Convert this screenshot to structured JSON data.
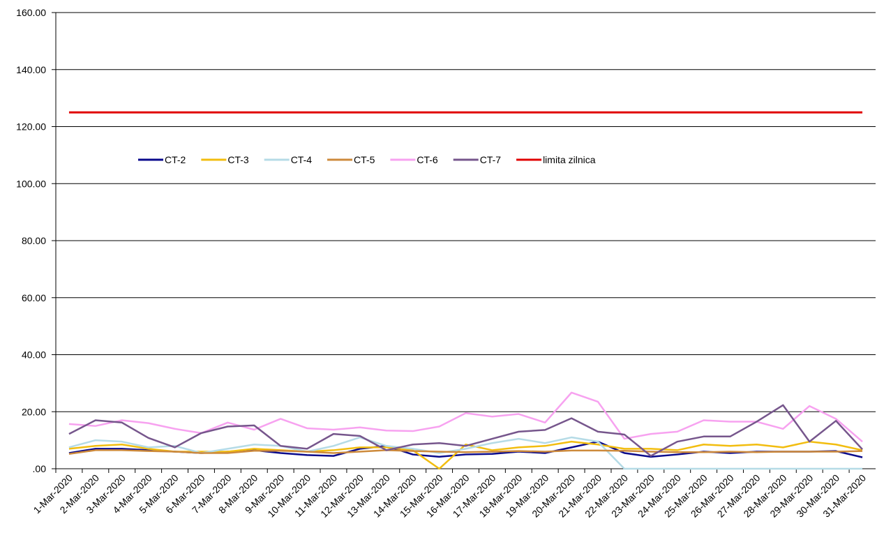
{
  "chart_data": {
    "type": "line",
    "categories": [
      "1-Mar-2020",
      "2-Mar-2020",
      "3-Mar-2020",
      "4-Mar-2020",
      "5-Mar-2020",
      "6-Mar-2020",
      "7-Mar-2020",
      "8-Mar-2020",
      "9-Mar-2020",
      "10-Mar-2020",
      "11-Mar-2020",
      "12-Mar-2020",
      "13-Mar-2020",
      "14-Mar-2020",
      "15-Mar-2020",
      "16-Mar-2020",
      "17-Mar-2020",
      "18-Mar-2020",
      "19-Mar-2020",
      "20-Mar-2020",
      "21-Mar-2020",
      "22-Mar-2020",
      "23-Mar-2020",
      "24-Mar-2020",
      "25-Mar-2020",
      "26-Mar-2020",
      "27-Mar-2020",
      "28-Mar-2020",
      "29-Mar-2020",
      "30-Mar-2020",
      "31-Mar-2020"
    ],
    "series": [
      {
        "name": "CT-2",
        "color": "#0a0a8c",
        "values": [
          5.5,
          7,
          7,
          6.5,
          6,
          5.5,
          6,
          6.5,
          5.5,
          4.8,
          4.5,
          7,
          8,
          5,
          4.2,
          5,
          5.2,
          6,
          5.5,
          7.5,
          9.5,
          5.5,
          4.2,
          5,
          6,
          5.5,
          6,
          6,
          6,
          6.2,
          4
        ]
      },
      {
        "name": "CT-3",
        "color": "#f2bd0f",
        "values": [
          7,
          8,
          8.5,
          7,
          6,
          6,
          6,
          7,
          6.5,
          6,
          6.5,
          7.5,
          7.5,
          6.5,
          0,
          8.5,
          6.5,
          7.5,
          8,
          9.5,
          8.5,
          7,
          7,
          6.5,
          8.5,
          8,
          8.5,
          7.5,
          9.5,
          8.5,
          6.5
        ]
      },
      {
        "name": "CT-4",
        "color": "#b5dbe6",
        "values": [
          7.5,
          10,
          9.5,
          7.5,
          8,
          5.5,
          7,
          8.5,
          8,
          6,
          8,
          11,
          8,
          7,
          5.5,
          7,
          9,
          10.5,
          9,
          11,
          9.5,
          0,
          0,
          0,
          0,
          0,
          0,
          0,
          0,
          0,
          0
        ]
      },
      {
        "name": "CT-5",
        "color": "#cd8a3c",
        "values": [
          5.2,
          6.5,
          6.5,
          6.2,
          6,
          5.5,
          5.5,
          6.3,
          6.3,
          6,
          5.5,
          6,
          6.5,
          6.2,
          6,
          5.8,
          6,
          6.2,
          6,
          6.4,
          6.4,
          6.3,
          6,
          5.8,
          5.8,
          6,
          5.8,
          6,
          6,
          6,
          6.2
        ]
      },
      {
        "name": "CT-6",
        "color": "#f7a2f0",
        "values": [
          15.7,
          15,
          17,
          16,
          14,
          12.5,
          16.2,
          13.7,
          17.5,
          14.2,
          13.7,
          14.5,
          13.4,
          13.2,
          14.8,
          19.5,
          18.3,
          19.2,
          16.2,
          26.7,
          23.5,
          10.5,
          12.2,
          13,
          17,
          16.5,
          16.5,
          14,
          22,
          17.5,
          9.5
        ]
      },
      {
        "name": "CT-7",
        "color": "#76568c",
        "values": [
          12.2,
          17,
          16.2,
          10.8,
          7.5,
          12.5,
          14.8,
          15.2,
          8,
          7,
          12.2,
          11.5,
          6.5,
          8.5,
          9,
          8,
          10.5,
          13,
          13.6,
          17.7,
          13,
          12,
          4.5,
          9.5,
          11.3,
          11.3,
          16.5,
          22.3,
          9.5,
          16.8,
          6.8
        ]
      },
      {
        "name": "limita zilnica",
        "color": "#e00000",
        "values": [
          125,
          125,
          125,
          125,
          125,
          125,
          125,
          125,
          125,
          125,
          125,
          125,
          125,
          125,
          125,
          125,
          125,
          125,
          125,
          125,
          125,
          125,
          125,
          125,
          125,
          125,
          125,
          125,
          125,
          125,
          125
        ]
      }
    ],
    "ylim": [
      0,
      160
    ],
    "yticks": [
      {
        "value": 0,
        "label": ".00"
      },
      {
        "value": 20,
        "label": "20.00"
      },
      {
        "value": 40,
        "label": "40.00"
      },
      {
        "value": 60,
        "label": "60.00"
      },
      {
        "value": 80,
        "label": "80.00"
      },
      {
        "value": 100,
        "label": "100.00"
      },
      {
        "value": 120,
        "label": "120.00"
      },
      {
        "value": 140,
        "label": "140.00"
      },
      {
        "value": 160,
        "label": "160.00"
      }
    ],
    "grid": true,
    "legend": "upper left"
  }
}
